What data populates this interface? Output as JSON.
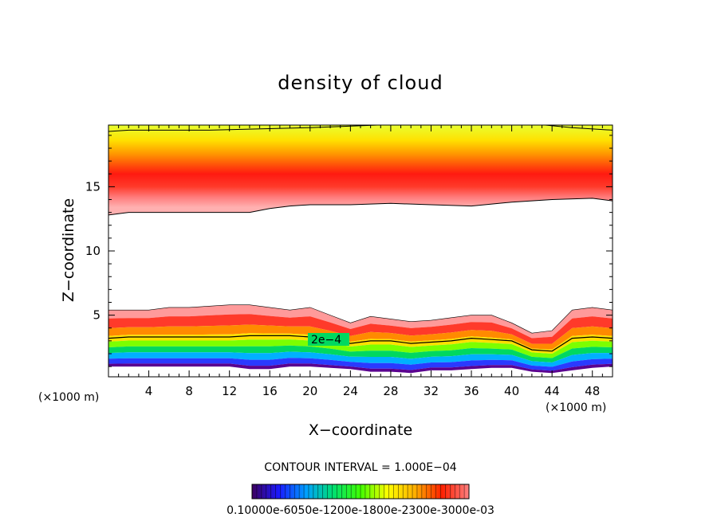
{
  "chart_data": {
    "type": "heatmap",
    "title": "density of cloud",
    "xlabel": "X−coordinate",
    "ylabel": "Z−coordinate",
    "x_unit_left": "(×1000 m)",
    "x_unit_right": "(×1000 m)",
    "xlim": [
      0,
      50
    ],
    "ylim": [
      0.2,
      19.8
    ],
    "x_ticks": [
      4,
      8,
      12,
      16,
      20,
      24,
      28,
      32,
      36,
      40,
      44,
      48
    ],
    "y_ticks": [
      5,
      10,
      15
    ],
    "x_tick_labels": [
      "4",
      "8",
      "12",
      "16",
      "20",
      "24",
      "28",
      "32",
      "36",
      "40",
      "44",
      "48"
    ],
    "y_tick_labels": [
      "5",
      "10",
      "15"
    ],
    "contour_interval_text": "CONTOUR INTERVAL = 1.000E−04",
    "contour_label": "2e−4",
    "colorbar_labels_text": "0.10000e-6050e-1200e-1800e-2300e-3000e-03",
    "colormap": [
      "#3d0060",
      "#1a1aff",
      "#00a0ff",
      "#00e070",
      "#40ff00",
      "#ffff00",
      "#ffb000",
      "#ff2000",
      "#ff8080"
    ],
    "upper_cloud": {
      "x": [
        0,
        2,
        4,
        6,
        8,
        10,
        12,
        14,
        16,
        18,
        20,
        24,
        28,
        32,
        36,
        40,
        44,
        48,
        50
      ],
      "base_z": [
        12.8,
        13.0,
        13.0,
        13.0,
        13.0,
        13.0,
        13.0,
        13.0,
        13.3,
        13.5,
        13.6,
        13.6,
        13.7,
        13.6,
        13.5,
        13.8,
        14.0,
        14.1,
        13.9
      ],
      "peak_z": 16.0,
      "top_z": 19.8
    },
    "lower_cloud": {
      "x": [
        0,
        2,
        4,
        6,
        8,
        10,
        12,
        14,
        16,
        18,
        20,
        22,
        24,
        26,
        28,
        30,
        32,
        34,
        36,
        38,
        40,
        42,
        44,
        46,
        48,
        50
      ],
      "top_z": [
        5.4,
        5.4,
        5.4,
        5.6,
        5.6,
        5.7,
        5.8,
        5.8,
        5.6,
        5.4,
        5.6,
        5.0,
        4.4,
        4.9,
        4.7,
        4.5,
        4.6,
        4.8,
        5.0,
        5.0,
        4.4,
        3.6,
        3.8,
        5.4,
        5.6,
        5.4
      ],
      "contour_2e4_z": [
        3.2,
        3.3,
        3.3,
        3.3,
        3.3,
        3.3,
        3.3,
        3.4,
        3.4,
        3.4,
        3.3,
        3.1,
        2.8,
        3.0,
        3.0,
        2.8,
        2.9,
        3.0,
        3.2,
        3.1,
        3.0,
        2.3,
        2.2,
        3.2,
        3.3,
        3.2
      ],
      "base_z": [
        1.0,
        1.0,
        1.0,
        1.0,
        1.0,
        1.0,
        1.0,
        0.8,
        0.8,
        1.0,
        1.0,
        0.9,
        0.8,
        0.6,
        0.6,
        0.5,
        0.7,
        0.7,
        0.8,
        0.9,
        0.9,
        0.6,
        0.5,
        0.7,
        0.9,
        1.0
      ]
    }
  }
}
